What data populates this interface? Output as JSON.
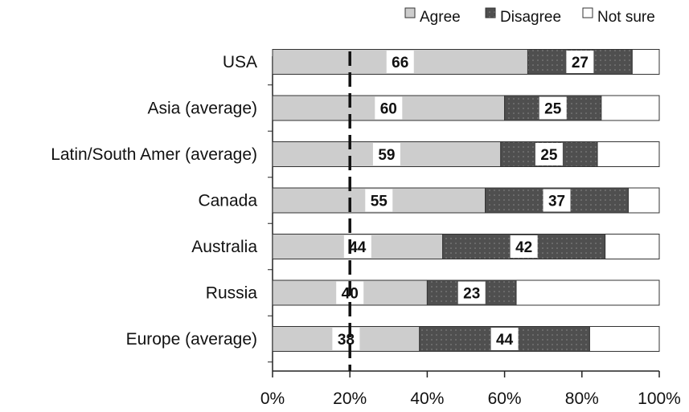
{
  "colors": {
    "agree": "#cdcdcd",
    "disagree": "#4f4f4f",
    "not_sure": "#ffffff",
    "outline": "#333333",
    "axis": "#222222",
    "label_bg": "#ffffff"
  },
  "legend": {
    "agree": "Agree",
    "disagree": "Disagree",
    "not_sure": "Not sure"
  },
  "chart_data": {
    "type": "bar",
    "orientation": "horizontal",
    "stacked": true,
    "title": "",
    "xlabel": "",
    "ylabel": "",
    "xlim": [
      0,
      100
    ],
    "x_ticks": [
      "0%",
      "20%",
      "40%",
      "60%",
      "80%",
      "100%"
    ],
    "grid": false,
    "reference_line_percent": 20,
    "legend_position": "top-right",
    "categories": [
      "USA",
      "Asia (average)",
      "Latin/South Amer (average)",
      "Canada",
      "Australia",
      "Russia",
      "Europe (average)"
    ],
    "series": [
      {
        "name": "Agree",
        "values": [
          66,
          60,
          59,
          55,
          44,
          40,
          38
        ]
      },
      {
        "name": "Disagree",
        "values": [
          27,
          25,
          25,
          37,
          42,
          23,
          44
        ]
      },
      {
        "name": "Not sure",
        "values": [
          7,
          15,
          16,
          8,
          14,
          37,
          18
        ]
      }
    ],
    "data_labels": {
      "Agree": [
        "66",
        "60",
        "59",
        "55",
        "44",
        "40",
        "38"
      ],
      "Disagree": [
        "27",
        "25",
        "25",
        "37",
        "42",
        "23",
        "44"
      ]
    }
  }
}
